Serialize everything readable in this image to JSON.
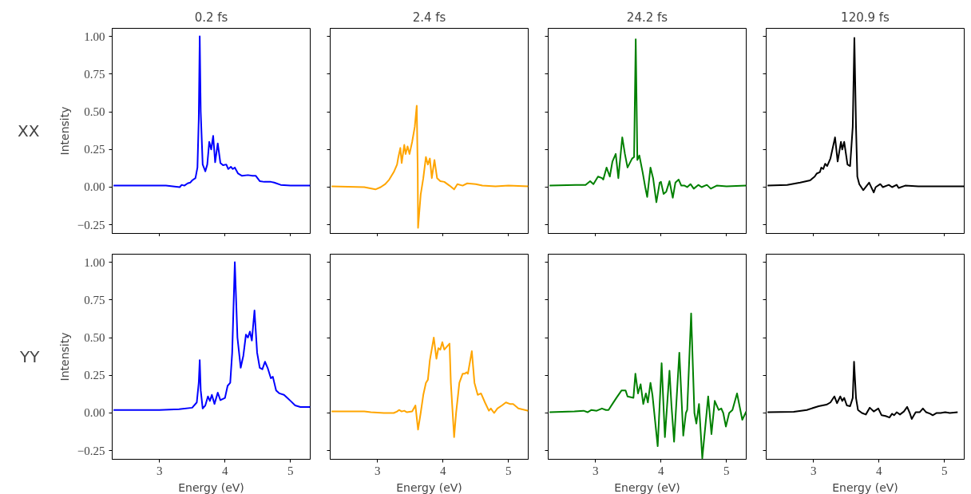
{
  "chart_data": [
    {
      "type": "line",
      "title": "0.2 fs",
      "ylabel": "Intensity",
      "annotations": [
        "XX"
      ],
      "tick_labels": "y",
      "xlim": [
        2.28,
        5.3
      ],
      "ylim": [
        -0.307,
        1.053
      ],
      "xticks": [
        3,
        4,
        5
      ],
      "yticks": [
        {
          "value": -0.25,
          "label": "−0.25"
        },
        {
          "value": 0,
          "label": "0.00"
        },
        {
          "value": 0.25,
          "label": "0.25"
        },
        {
          "value": 0.5,
          "label": "0.50"
        },
        {
          "value": 0.75,
          "label": "0.75"
        },
        {
          "value": 1,
          "label": "1.00"
        }
      ],
      "series": [
        {
          "color": "#0000ff",
          "x": [
            2.3,
            2.8,
            3.1,
            3.31,
            3.34,
            3.38,
            3.43,
            3.47,
            3.5,
            3.55,
            3.58,
            3.6,
            3.615,
            3.63,
            3.66,
            3.7,
            3.73,
            3.76,
            3.79,
            3.82,
            3.85,
            3.89,
            3.93,
            3.97,
            4.02,
            4.05,
            4.09,
            4.12,
            4.15,
            4.2,
            4.26,
            4.35,
            4.42,
            4.47,
            4.53,
            4.6,
            4.7,
            4.75,
            4.85,
            5.0,
            5.3
          ],
          "values": [
            0.01,
            0.01,
            0.01,
            0.0,
            0.015,
            0.01,
            0.025,
            0.03,
            0.045,
            0.06,
            0.13,
            0.45,
            1.0,
            0.5,
            0.15,
            0.105,
            0.15,
            0.3,
            0.25,
            0.34,
            0.165,
            0.29,
            0.16,
            0.145,
            0.15,
            0.12,
            0.135,
            0.12,
            0.13,
            0.09,
            0.075,
            0.08,
            0.075,
            0.075,
            0.04,
            0.035,
            0.035,
            0.03,
            0.015,
            0.01,
            0.01
          ]
        }
      ]
    },
    {
      "type": "line",
      "title": "2.4 fs",
      "tick_labels": false,
      "xlim": [
        2.28,
        5.3
      ],
      "ylim": [
        -0.307,
        1.053
      ],
      "xticks": [
        3,
        4,
        5
      ],
      "yticks": [
        -0.25,
        0,
        0.25,
        0.5,
        0.75,
        1
      ],
      "series": [
        {
          "color": "#ffa500",
          "x": [
            2.3,
            2.8,
            2.97,
            3.05,
            3.12,
            3.18,
            3.25,
            3.3,
            3.32,
            3.35,
            3.37,
            3.41,
            3.43,
            3.46,
            3.49,
            3.53,
            3.57,
            3.6,
            3.615,
            3.62,
            3.66,
            3.7,
            3.74,
            3.77,
            3.8,
            3.83,
            3.87,
            3.91,
            3.96,
            4.02,
            4.1,
            4.17,
            4.22,
            4.3,
            4.37,
            4.5,
            4.6,
            4.8,
            5.0,
            5.3
          ],
          "values": [
            0.005,
            0.0,
            -0.015,
            0.0,
            0.02,
            0.05,
            0.1,
            0.15,
            0.2,
            0.26,
            0.16,
            0.28,
            0.22,
            0.27,
            0.22,
            0.3,
            0.4,
            0.54,
            0.1,
            -0.27,
            -0.05,
            0.06,
            0.2,
            0.15,
            0.19,
            0.06,
            0.18,
            0.06,
            0.04,
            0.035,
            0.01,
            -0.015,
            0.02,
            0.01,
            0.025,
            0.02,
            0.01,
            0.005,
            0.01,
            0.005
          ]
        }
      ]
    },
    {
      "type": "line",
      "title": "24.2 fs",
      "tick_labels": false,
      "xlim": [
        2.28,
        5.3
      ],
      "ylim": [
        -0.307,
        1.053
      ],
      "xticks": [
        3,
        4,
        5
      ],
      "yticks": [
        -0.25,
        0,
        0.25,
        0.5,
        0.75,
        1
      ],
      "series": [
        {
          "color": "#008000",
          "x": [
            2.3,
            2.7,
            2.85,
            2.92,
            2.97,
            3.04,
            3.1,
            3.12,
            3.17,
            3.22,
            3.26,
            3.31,
            3.35,
            3.41,
            3.45,
            3.49,
            3.56,
            3.59,
            3.615,
            3.64,
            3.67,
            3.72,
            3.76,
            3.79,
            3.84,
            3.88,
            3.93,
            3.98,
            4.0,
            4.04,
            4.08,
            4.13,
            4.18,
            4.22,
            4.27,
            4.31,
            4.36,
            4.4,
            4.45,
            4.5,
            4.57,
            4.62,
            4.7,
            4.76,
            4.85,
            5.0,
            5.3
          ],
          "values": [
            0.01,
            0.015,
            0.015,
            0.04,
            0.02,
            0.07,
            0.06,
            0.05,
            0.13,
            0.07,
            0.17,
            0.22,
            0.06,
            0.33,
            0.22,
            0.13,
            0.19,
            0.2,
            0.98,
            0.18,
            0.21,
            0.1,
            0.0,
            -0.065,
            0.13,
            0.06,
            -0.1,
            0.03,
            0.035,
            -0.045,
            -0.03,
            0.04,
            -0.07,
            0.03,
            0.05,
            0.01,
            0.01,
            0.0,
            0.02,
            -0.01,
            0.015,
            0.0,
            0.015,
            -0.01,
            0.01,
            0.005,
            0.01
          ]
        }
      ]
    },
    {
      "type": "line",
      "title": "120.9 fs",
      "tick_labels": false,
      "xlim": [
        2.28,
        5.3
      ],
      "ylim": [
        -0.307,
        1.053
      ],
      "xticks": [
        3,
        4,
        5
      ],
      "yticks": [
        -0.25,
        0,
        0.25,
        0.5,
        0.75,
        1
      ],
      "series": [
        {
          "color": "#000000",
          "x": [
            2.3,
            2.6,
            2.8,
            2.95,
            3.02,
            3.05,
            3.1,
            3.12,
            3.15,
            3.18,
            3.21,
            3.26,
            3.33,
            3.37,
            3.42,
            3.44,
            3.47,
            3.52,
            3.56,
            3.6,
            3.625,
            3.65,
            3.67,
            3.7,
            3.76,
            3.85,
            3.92,
            3.95,
            4.02,
            4.06,
            4.15,
            4.2,
            4.27,
            4.3,
            4.4,
            4.6,
            4.8,
            5.3
          ],
          "values": [
            0.01,
            0.015,
            0.03,
            0.045,
            0.07,
            0.09,
            0.1,
            0.13,
            0.12,
            0.155,
            0.14,
            0.19,
            0.33,
            0.17,
            0.3,
            0.25,
            0.3,
            0.15,
            0.14,
            0.4,
            0.99,
            0.4,
            0.07,
            0.02,
            -0.02,
            0.03,
            -0.035,
            0.0,
            0.02,
            0.0,
            0.015,
            0.0,
            0.015,
            -0.005,
            0.01,
            0.005,
            0.005,
            0.005
          ]
        }
      ]
    },
    {
      "type": "line",
      "xlabel": "Energy (eV)",
      "ylabel": "Intensity",
      "annotations": [
        "YY"
      ],
      "xlim": [
        2.28,
        5.3
      ],
      "ylim": [
        -0.307,
        1.053
      ],
      "xticks": [
        3,
        4,
        5
      ],
      "yticks": [
        {
          "value": -0.25,
          "label": "−0.25"
        },
        {
          "value": 0,
          "label": "0.00"
        },
        {
          "value": 0.25,
          "label": "0.25"
        },
        {
          "value": 0.5,
          "label": "0.50"
        },
        {
          "value": 0.75,
          "label": "0.75"
        },
        {
          "value": 1,
          "label": "1.00"
        }
      ],
      "series": [
        {
          "color": "#0000ff",
          "x": [
            2.3,
            3.0,
            3.3,
            3.5,
            3.57,
            3.6,
            3.615,
            3.63,
            3.66,
            3.7,
            3.74,
            3.77,
            3.8,
            3.84,
            3.89,
            3.93,
            4.0,
            4.04,
            4.08,
            4.11,
            4.15,
            4.19,
            4.24,
            4.28,
            4.32,
            4.35,
            4.38,
            4.41,
            4.45,
            4.49,
            4.53,
            4.57,
            4.61,
            4.65,
            4.7,
            4.73,
            4.78,
            4.83,
            4.9,
            4.95,
            5.0,
            5.07,
            5.15,
            5.3
          ],
          "values": [
            0.02,
            0.02,
            0.025,
            0.035,
            0.07,
            0.2,
            0.35,
            0.15,
            0.03,
            0.05,
            0.11,
            0.08,
            0.12,
            0.06,
            0.135,
            0.085,
            0.1,
            0.18,
            0.2,
            0.4,
            1.0,
            0.5,
            0.3,
            0.38,
            0.52,
            0.5,
            0.54,
            0.48,
            0.68,
            0.4,
            0.3,
            0.29,
            0.34,
            0.3,
            0.23,
            0.24,
            0.15,
            0.13,
            0.12,
            0.1,
            0.08,
            0.05,
            0.04,
            0.04
          ]
        }
      ]
    },
    {
      "type": "line",
      "xlabel": "Energy (eV)",
      "tick_labels": "x",
      "xlim": [
        2.28,
        5.3
      ],
      "ylim": [
        -0.307,
        1.053
      ],
      "xticks": [
        3,
        4,
        5
      ],
      "yticks": [
        -0.25,
        0,
        0.25,
        0.5,
        0.75,
        1
      ],
      "series": [
        {
          "color": "#ffa500",
          "x": [
            2.3,
            2.8,
            2.9,
            3.1,
            3.25,
            3.3,
            3.33,
            3.37,
            3.41,
            3.45,
            3.53,
            3.58,
            3.62,
            3.66,
            3.7,
            3.74,
            3.77,
            3.8,
            3.86,
            3.9,
            3.93,
            3.96,
            3.99,
            4.02,
            4.06,
            4.1,
            4.12,
            4.17,
            4.2,
            4.25,
            4.3,
            4.33,
            4.36,
            4.38,
            4.44,
            4.48,
            4.53,
            4.58,
            4.64,
            4.7,
            4.73,
            4.78,
            4.83,
            4.9,
            4.96,
            5.02,
            5.07,
            5.15,
            5.3
          ],
          "values": [
            0.01,
            0.01,
            0.005,
            0.0,
            0.0,
            0.01,
            0.02,
            0.01,
            0.015,
            0.005,
            0.01,
            0.05,
            -0.11,
            0.0,
            0.12,
            0.2,
            0.22,
            0.35,
            0.5,
            0.36,
            0.43,
            0.42,
            0.47,
            0.42,
            0.44,
            0.46,
            0.2,
            -0.16,
            0.0,
            0.2,
            0.26,
            0.26,
            0.27,
            0.26,
            0.41,
            0.2,
            0.12,
            0.13,
            0.07,
            0.015,
            0.03,
            0.0,
            0.03,
            0.05,
            0.07,
            0.06,
            0.06,
            0.03,
            0.015
          ]
        }
      ]
    },
    {
      "type": "line",
      "xlabel": "Energy (eV)",
      "tick_labels": "x",
      "xlim": [
        2.28,
        5.3
      ],
      "ylim": [
        -0.307,
        1.053
      ],
      "xticks": [
        3,
        4,
        5
      ],
      "yticks": [
        -0.25,
        0,
        0.25,
        0.5,
        0.75,
        1
      ],
      "series": [
        {
          "color": "#008000",
          "x": [
            2.3,
            2.68,
            2.82,
            2.88,
            2.94,
            3.02,
            3.1,
            3.16,
            3.2,
            3.26,
            3.32,
            3.4,
            3.46,
            3.49,
            3.58,
            3.61,
            3.65,
            3.69,
            3.73,
            3.77,
            3.8,
            3.84,
            3.87,
            3.95,
            4.01,
            4.06,
            4.13,
            4.16,
            4.2,
            4.28,
            4.34,
            4.38,
            4.4,
            4.46,
            4.51,
            4.54,
            4.58,
            4.63,
            4.72,
            4.77,
            4.82,
            4.88,
            4.92,
            4.95,
            4.99,
            5.04,
            5.09,
            5.16,
            5.24,
            5.3
          ],
          "values": [
            0.005,
            0.01,
            0.015,
            0.005,
            0.02,
            0.015,
            0.03,
            0.02,
            0.02,
            0.06,
            0.1,
            0.15,
            0.15,
            0.11,
            0.1,
            0.26,
            0.13,
            0.19,
            0.06,
            0.13,
            0.07,
            0.2,
            0.12,
            -0.22,
            0.33,
            -0.16,
            0.28,
            0.05,
            -0.19,
            0.4,
            -0.15,
            0.0,
            0.02,
            0.66,
            0.0,
            -0.07,
            0.06,
            -0.3,
            0.11,
            -0.14,
            0.08,
            0.02,
            0.03,
            0.0,
            -0.09,
            0.0,
            0.02,
            0.13,
            -0.045,
            0.01
          ]
        }
      ]
    },
    {
      "type": "line",
      "xlabel": "Energy (eV)",
      "tick_labels": "x",
      "xlim": [
        2.28,
        5.3
      ],
      "ylim": [
        -0.307,
        1.053
      ],
      "xticks": [
        3,
        4,
        5
      ],
      "yticks": [
        -0.25,
        0,
        0.25,
        0.5,
        0.75,
        1
      ],
      "series": [
        {
          "color": "#000000",
          "x": [
            2.3,
            2.7,
            2.9,
            3.08,
            3.14,
            3.2,
            3.26,
            3.32,
            3.36,
            3.41,
            3.44,
            3.47,
            3.51,
            3.56,
            3.6,
            3.62,
            3.65,
            3.68,
            3.74,
            3.8,
            3.86,
            3.92,
            3.99,
            4.04,
            4.1,
            4.16,
            4.2,
            4.23,
            4.27,
            4.32,
            4.38,
            4.43,
            4.47,
            4.5,
            4.56,
            4.62,
            4.67,
            4.72,
            4.78,
            4.82,
            4.88,
            4.94,
            5.01,
            5.08,
            5.2
          ],
          "values": [
            0.005,
            0.008,
            0.02,
            0.045,
            0.05,
            0.055,
            0.07,
            0.11,
            0.065,
            0.11,
            0.08,
            0.1,
            0.05,
            0.045,
            0.1,
            0.34,
            0.1,
            0.02,
            0.0,
            -0.01,
            0.035,
            0.01,
            0.03,
            -0.015,
            -0.02,
            -0.03,
            -0.005,
            -0.015,
            0.005,
            -0.01,
            0.01,
            0.04,
            0.0,
            -0.04,
            0.005,
            0.005,
            0.03,
            0.005,
            -0.005,
            -0.015,
            0.0,
            0.0,
            0.005,
            0.0,
            0.005
          ]
        }
      ]
    }
  ]
}
